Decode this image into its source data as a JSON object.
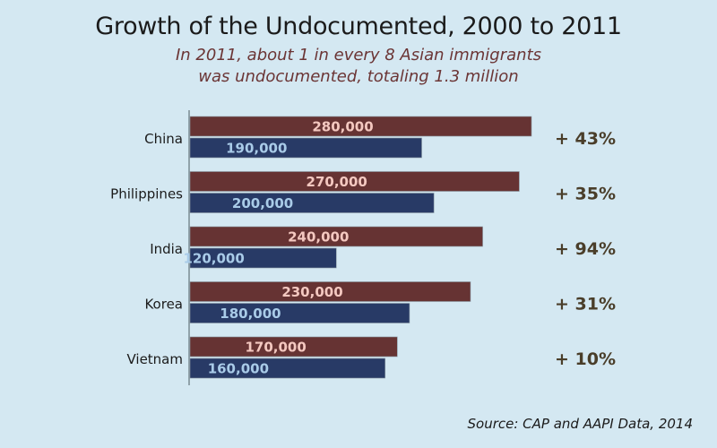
{
  "chart_data": {
    "type": "bar",
    "orientation": "horizontal",
    "title": "Growth of the Undocumented, 2000 to 2011",
    "subtitle_lines": [
      "In 2011, about 1 in every 8 Asian immigrants",
      "was undocumented, totaling 1.3 million"
    ],
    "categories": [
      "China",
      "Philippines",
      "India",
      "Korea",
      "Vietnam"
    ],
    "series": [
      {
        "name": "2011",
        "color": "#663333",
        "label_color": "#f4c8c0",
        "values": [
          280000,
          270000,
          240000,
          230000,
          170000
        ],
        "labels": [
          "280,000",
          "270,000",
          "240,000",
          "230,000",
          "170,000"
        ]
      },
      {
        "name": "2000",
        "color": "#283a66",
        "label_color": "#a9cbe8",
        "values": [
          190000,
          200000,
          120000,
          180000,
          160000
        ],
        "labels": [
          "190,000",
          "200,000",
          "120,000",
          "180,000",
          "160,000"
        ]
      }
    ],
    "growth_labels": [
      "+ 43%",
      "+ 35%",
      "+ 94%",
      "+ 31%",
      "+ 10%"
    ],
    "xlim": [
      0,
      280000
    ],
    "xlabel": "",
    "ylabel": "",
    "grid": false,
    "legend": "none",
    "source": "Source: CAP and AAPI Data, 2014"
  }
}
